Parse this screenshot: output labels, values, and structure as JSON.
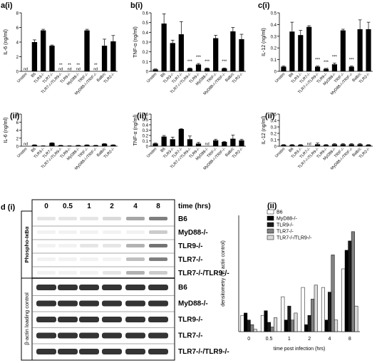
{
  "chart_data": [
    {
      "type": "bar",
      "panel_label": "a(i)",
      "ylabel": "IL-6 (ng/ml)",
      "categories": [
        "Unstim",
        "B6",
        "TLR3-/-",
        "TLR7-/-",
        "TLR7-/-/TLR9-/-",
        "TLR9-/-",
        "MyD88-/-",
        "TRIF-/-",
        "MyD88-/-/TRIF-/-",
        "Balb/c",
        "TLR2-/-"
      ],
      "values": [
        0,
        4.0,
        5.6,
        3.5,
        0,
        0,
        0,
        5.6,
        0,
        3.5,
        4.1
      ],
      "errors": [
        0,
        0.3,
        0.15,
        0.1,
        0,
        0,
        0,
        0.15,
        0,
        0.9,
        0.8
      ],
      "significance": [
        null,
        null,
        null,
        null,
        "**",
        "**",
        "**",
        null,
        "**",
        null,
        null
      ],
      "nd_labels": [
        "nd",
        null,
        null,
        null,
        "nd",
        "nd",
        "nd",
        null,
        "nd",
        null,
        null
      ],
      "color": "#000000",
      "ylim": [
        0,
        8
      ],
      "yticks": [
        0,
        2,
        4,
        6,
        8
      ]
    },
    {
      "type": "bar",
      "panel_label": "b(i)",
      "ylabel": "TNF-α (ng/ml)",
      "categories": [
        "Unstim",
        "B6",
        "TLR3-/-",
        "TLR7-/-",
        "TLR7-/-/TLR9-/-",
        "TLR9-/-",
        "MyD88-/-",
        "TRIF-/-",
        "MyD88-/-/TRIF-/-",
        "Balb/c",
        "TLR2-/-"
      ],
      "values": [
        0.02,
        0.49,
        0.29,
        0.38,
        0.03,
        0.07,
        0.03,
        0.34,
        0.03,
        0.41,
        0.33
      ],
      "errors": [
        0.005,
        0.1,
        0.03,
        0.13,
        0.005,
        0.01,
        0.005,
        0.03,
        0.005,
        0.04,
        0.05
      ],
      "significance": [
        null,
        null,
        null,
        null,
        "***",
        "***",
        "***",
        null,
        "***",
        null,
        null
      ],
      "nd_labels": [
        null,
        null,
        null,
        null,
        null,
        null,
        null,
        null,
        null,
        null,
        null
      ],
      "color": "#000000",
      "ylim": [
        0,
        0.6
      ],
      "yticks": [
        0,
        0.1,
        0.2,
        0.3,
        0.4,
        0.5,
        0.6
      ]
    },
    {
      "type": "bar",
      "panel_label": "c(i)",
      "ylabel": "IL-12 (ng/ml)",
      "categories": [
        "Unstim",
        "B6",
        "TLR3-/-",
        "TLR7-/-",
        "TLR7-/-/TLR9-/-",
        "TLR9-/-",
        "MyD88-/-",
        "TRIF-/-",
        "MyD88-/-/TRIF-/-",
        "Balb/c",
        "TLR2-/-"
      ],
      "values": [
        0.04,
        0.34,
        0.31,
        0.38,
        0.04,
        0.02,
        0.06,
        0.35,
        0.04,
        0.36,
        0.36
      ],
      "errors": [
        0.005,
        0.08,
        0.04,
        0.01,
        0.005,
        0.005,
        0.01,
        0.01,
        0.005,
        0.08,
        0.06
      ],
      "significance": [
        null,
        null,
        null,
        null,
        "***",
        "***",
        "***",
        null,
        "***",
        null,
        null
      ],
      "nd_labels": [
        null,
        null,
        null,
        null,
        null,
        "nd",
        null,
        null,
        null,
        null,
        null
      ],
      "color": "#000000",
      "ylim": [
        0,
        0.5
      ],
      "yticks": [
        0,
        0.1,
        0.2,
        0.3,
        0.4,
        0.5
      ]
    },
    {
      "type": "bar",
      "panel_label": "(ii)",
      "ylabel": "IL-6 (ng/ml)",
      "categories": [
        "Unstim",
        "B6",
        "TLR3-/-",
        "TLR7-/-",
        "TLR7-/-/TLR9-/-",
        "TLR9-/-",
        "MyD88-/-",
        "TRIF-/-",
        "MyD88-/-/TRIF-/-",
        "Balb/c",
        "TLR2-/-"
      ],
      "values": [
        0,
        0.3,
        0.1,
        0.8,
        0.2,
        0.1,
        0.2,
        0.3,
        0.2,
        0.6,
        0.3
      ],
      "errors": [
        0,
        0.05,
        0.02,
        0.05,
        0.03,
        0.02,
        0.03,
        0.05,
        0.03,
        0.05,
        0.05
      ],
      "significance": [
        null,
        null,
        null,
        null,
        null,
        null,
        null,
        null,
        null,
        null,
        null
      ],
      "nd_labels": [
        "nd",
        null,
        null,
        null,
        null,
        null,
        null,
        null,
        null,
        null,
        null
      ],
      "color": "#000000",
      "ylim": [
        0,
        8
      ],
      "yticks": [
        0,
        2,
        4,
        6,
        8
      ]
    },
    {
      "type": "bar",
      "panel_label": "(ii)",
      "ylabel": "TNF-α (ng/ml)",
      "categories": [
        "Unstim",
        "B6",
        "TLR3-/-",
        "TLR7-/-",
        "TLR7-/-/TLR9-/-",
        "TLR9-/-",
        "MyD88-/-",
        "TRIF-/-",
        "MyD88-/-/TRIF-/-",
        "Balb/c",
        "TLR2-/-"
      ],
      "values": [
        0.05,
        0.18,
        0.13,
        0.32,
        0.13,
        0.05,
        0,
        0.11,
        0.08,
        0.14,
        0.11
      ],
      "errors": [
        0.01,
        0.02,
        0.04,
        0.01,
        0.06,
        0.02,
        0,
        0.02,
        0.01,
        0.07,
        0.02
      ],
      "significance": [
        null,
        null,
        null,
        null,
        null,
        null,
        null,
        null,
        null,
        null,
        null
      ],
      "nd_labels": [
        null,
        null,
        null,
        null,
        null,
        null,
        "nd",
        null,
        null,
        null,
        null
      ],
      "color": "#000000",
      "ylim": [
        0,
        0.6
      ],
      "yticks": [
        0,
        0.1,
        0.2,
        0.3,
        0.4,
        0.5,
        0.6
      ]
    },
    {
      "type": "bar",
      "panel_label": "(ii)",
      "ylabel": "IL-12 (ng/ml)",
      "categories": [
        "Unstim",
        "B6",
        "TLR3-/-",
        "TLR7-/-",
        "TLR7-/-/TLR9-/-",
        "TLR9-/-",
        "MyD88-/-",
        "TRIF-/-",
        "MyD88-/-/TRIF-/-",
        "Balb/c",
        "TLR2-/-"
      ],
      "values": [
        0.02,
        0.02,
        0.02,
        0,
        0.03,
        0.02,
        0.03,
        0.03,
        0.03,
        0.03,
        0.02
      ],
      "errors": [
        0.005,
        0.005,
        0.005,
        0,
        0.02,
        0.005,
        0.01,
        0.01,
        0.01,
        0.01,
        0.005
      ],
      "significance": [
        null,
        null,
        null,
        null,
        null,
        null,
        null,
        null,
        null,
        null,
        null
      ],
      "nd_labels": [
        null,
        null,
        null,
        "nd",
        null,
        null,
        null,
        null,
        null,
        null,
        null
      ],
      "color": "#000000",
      "ylim": [
        0,
        0.5
      ],
      "yticks": [
        0,
        0.1,
        0.2,
        0.3,
        0.4,
        0.5
      ]
    },
    {
      "type": "bar",
      "panel_label": "(ii)",
      "ylabel": "densitometry (% actin control)",
      "xlabel": "time post infection (hrs)",
      "categories": [
        "0",
        "0.5",
        "1",
        "2",
        "4",
        "8"
      ],
      "series": [
        {
          "name": "B6",
          "color": "#ffffff",
          "values": [
            7,
            7,
            15,
            19,
            19,
            27
          ]
        },
        {
          "name": "MyD88-/-",
          "color": "#000000",
          "values": [
            8,
            9,
            5,
            3,
            5,
            35
          ]
        },
        {
          "name": "TLR9-/-",
          "color": "#1a1a1a",
          "values": [
            5,
            4,
            11,
            7,
            17,
            39
          ]
        },
        {
          "name": "TLR7-/-",
          "color": "#808080",
          "values": [
            3,
            2,
            5,
            14,
            33,
            43
          ]
        },
        {
          "name": "TLR7-/-/TLR9-/-",
          "color": "#d9d9d9",
          "values": [
            1,
            6,
            8,
            20,
            5,
            11
          ]
        }
      ],
      "ylim": [
        0,
        50
      ],
      "legend": "top-left"
    }
  ],
  "blot": {
    "panel_label": "d (i)",
    "times": [
      "0",
      "0.5",
      "1",
      "2",
      "4",
      "8"
    ],
    "time_label": "time (hrs)",
    "phospho_label": "Phospho-IκBα",
    "actin_label": "β-actin loading control",
    "phospho_rows": [
      "B6",
      "MyD88-/-",
      "TLR9-/-",
      "TLR7-/-",
      "TLR7-/-/TLR9-/-"
    ],
    "actin_rows": [
      "B6",
      "MyD88-/-",
      "TLR9-/-",
      "TLR7-/-",
      "TLR7-/-/TLR9-/-"
    ]
  }
}
